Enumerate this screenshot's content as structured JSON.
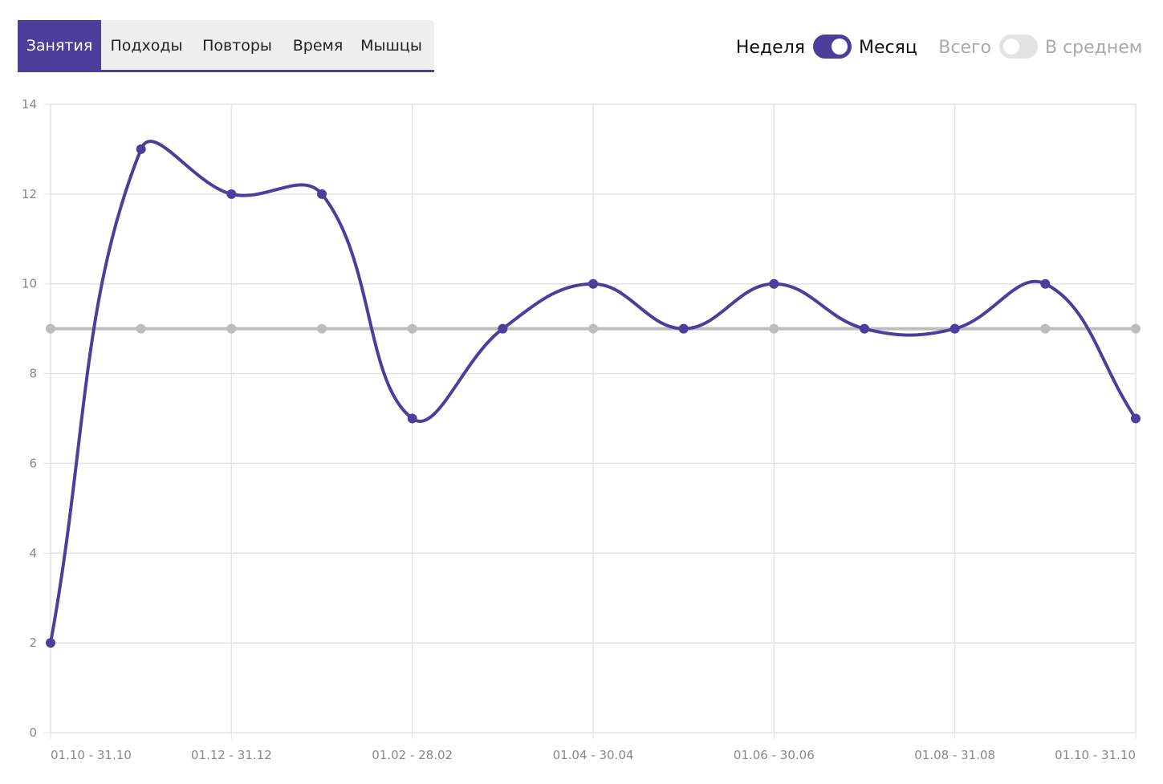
{
  "tabs": [
    {
      "label": "Занятия",
      "active": true
    },
    {
      "label": "Подходы",
      "active": false
    },
    {
      "label": "Повторы",
      "active": false
    },
    {
      "label": "Время",
      "active": false
    },
    {
      "label": "Мышцы",
      "active": false
    }
  ],
  "toggles": [
    {
      "left": "Неделя",
      "right": "Месяц",
      "on": true
    },
    {
      "left": "Всего",
      "right": "В среднем",
      "on": false
    }
  ],
  "chart_data": {
    "type": "line",
    "categories": [
      "01.10 - 31.10",
      null,
      "01.12 - 31.12",
      null,
      "01.02 - 28.02",
      null,
      "01.04 - 30.04",
      null,
      "01.06 - 30.06",
      null,
      "01.08 - 31.08",
      null,
      "01.10 - 31.10"
    ],
    "series": [
      {
        "name": "Занятия",
        "color": "#4b3f9b",
        "values": [
          2,
          13,
          12,
          12,
          7,
          9,
          10,
          9,
          10,
          9,
          9,
          10,
          7
        ]
      },
      {
        "name": "В среднем",
        "color": "#bdbdbd",
        "values": [
          9,
          9,
          9,
          9,
          9,
          9,
          9,
          9,
          9,
          9,
          9,
          9,
          9
        ]
      }
    ],
    "ylim": [
      0,
      14
    ],
    "yticks": [
      0,
      2,
      4,
      6,
      8,
      10,
      12,
      14
    ],
    "grid": true
  }
}
